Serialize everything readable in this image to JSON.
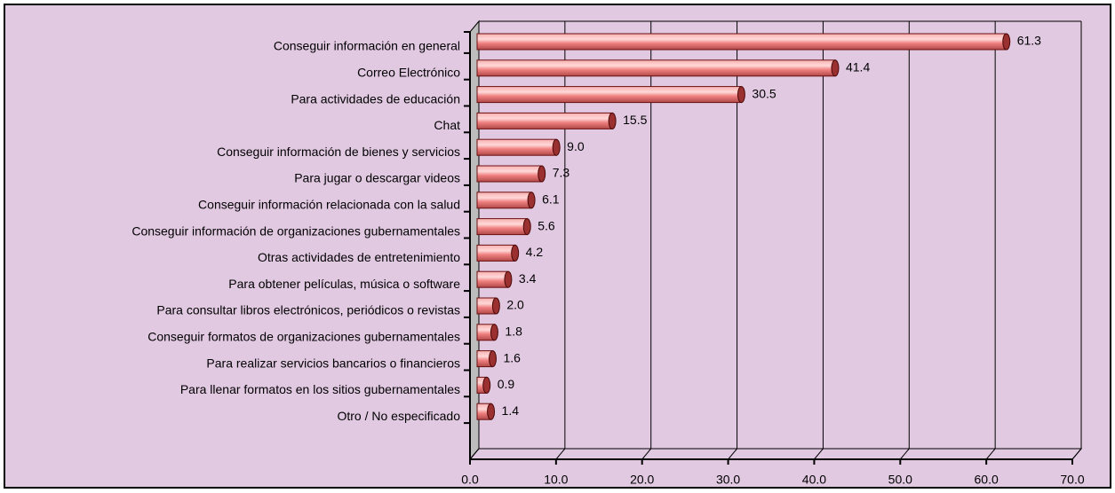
{
  "chart_data": {
    "type": "bar",
    "orientation": "horizontal",
    "categories": [
      "Conseguir información en general",
      "Correo Electrónico",
      "Para actividades de educación",
      "Chat",
      "Conseguir información de bienes y servicios",
      "Para jugar o descargar videos",
      "Conseguir información relacionada con la salud",
      "Conseguir información de organizaciones gubernamentales",
      "Otras actividades de entretenimiento",
      "Para obtener películas, música o software",
      "Para consultar libros electrónicos, periódicos o revistas",
      "Conseguir formatos de organizaciones gubernamentales",
      "Para realizar servicios bancarios o financieros",
      "Para llenar formatos en los sitios gubernamentales",
      "Otro / No especificado"
    ],
    "values": [
      61.3,
      41.4,
      30.5,
      15.5,
      9,
      7.3,
      6.1,
      5.6,
      4.2,
      3.4,
      2,
      1.8,
      1.6,
      0.9,
      1.4
    ],
    "value_labels": [
      "61.3",
      "41.4",
      "30.5",
      "15.5",
      "9.0",
      "7.3",
      "6.1",
      "5.6",
      "4.2",
      "3.4",
      "2.0",
      "1.8",
      "1.6",
      "0.9",
      "1.4"
    ],
    "color": "#f08080",
    "xlim": [
      0,
      70
    ],
    "xticks": [
      {
        "value": 0,
        "label": "0.0"
      },
      {
        "value": 10,
        "label": "10.0"
      },
      {
        "value": 20,
        "label": "20.0"
      },
      {
        "value": 30,
        "label": "30.0"
      },
      {
        "value": 40,
        "label": "40.0"
      },
      {
        "value": 50,
        "label": "50.0"
      },
      {
        "value": 60,
        "label": "60.0"
      },
      {
        "value": 70,
        "label": "70.0"
      }
    ],
    "grid": true
  }
}
